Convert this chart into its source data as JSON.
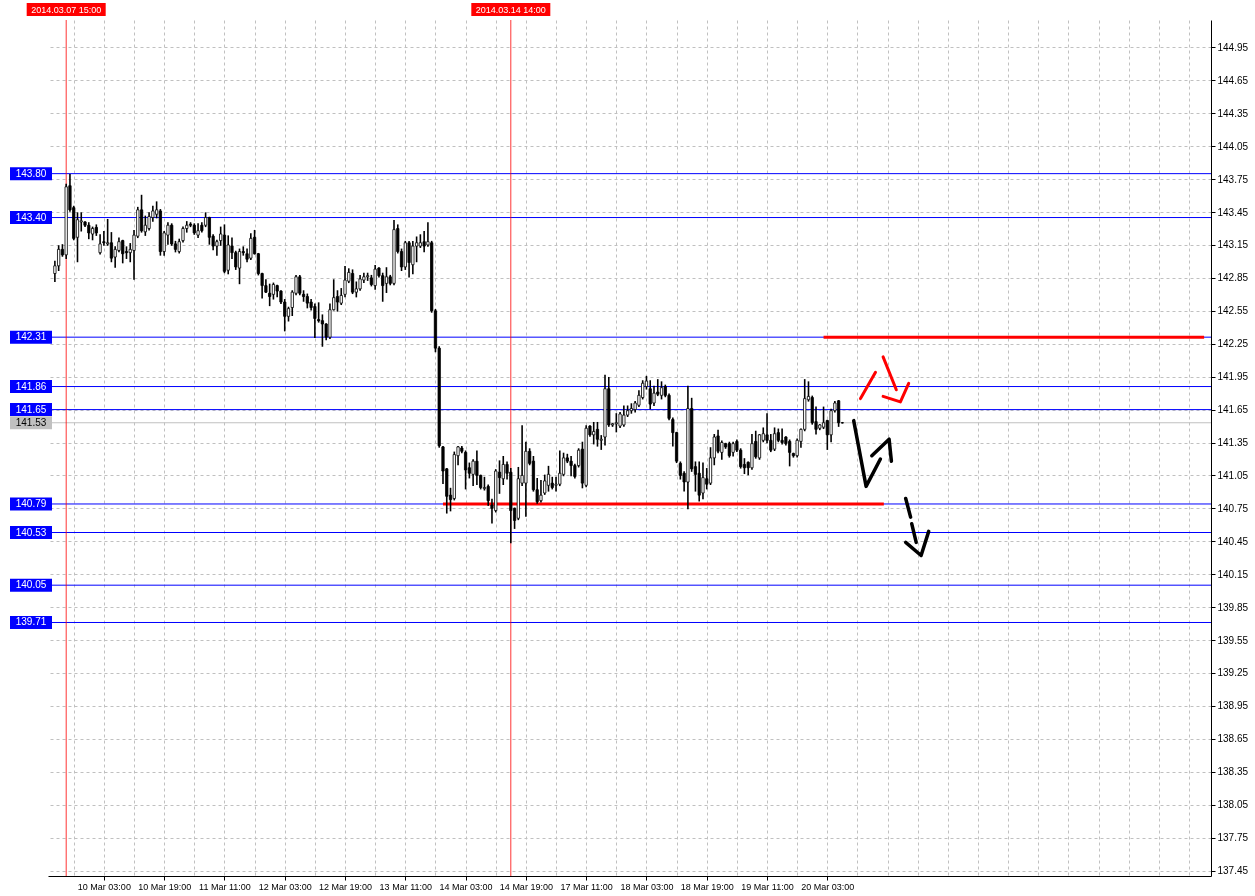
{
  "chart_data": {
    "type": "candlestick",
    "categories": [
      null,
      null,
      null,
      "2014.03.07 15:00",
      null,
      null,
      null,
      null,
      null,
      null,
      null,
      null,
      null,
      "10 Mar 03:00",
      null,
      null,
      null,
      null,
      null,
      null,
      null,
      null,
      null,
      null,
      null,
      null,
      null,
      null,
      null,
      "10 Mar 19:00",
      null,
      null,
      null,
      null,
      null,
      null,
      null,
      null,
      null,
      null,
      null,
      null,
      null,
      null,
      null,
      "11 Mar 11:00",
      null,
      null,
      null,
      null,
      null,
      null,
      null,
      null,
      null,
      null,
      null,
      null,
      null,
      null,
      null,
      "12 Mar 03:00",
      null,
      null,
      null,
      null,
      null,
      null,
      null,
      null,
      null,
      null,
      null,
      null,
      null,
      null,
      null,
      "12 Mar 19:00",
      null,
      null,
      null,
      null,
      null,
      null,
      null,
      null,
      null,
      null,
      null,
      null,
      null,
      null,
      null,
      "13 Mar 11:00",
      null,
      null,
      null,
      null,
      null,
      null,
      null,
      null,
      null,
      null,
      null,
      null,
      null,
      null,
      null,
      "14 Mar 03:00",
      null,
      null,
      null,
      null,
      null,
      null,
      null,
      null,
      null,
      null,
      null,
      "2014.03.14 14:00",
      null,
      null,
      null,
      "14 Mar 19:00",
      null,
      null,
      null,
      null,
      null,
      null,
      null,
      null,
      null,
      null,
      null,
      null,
      null,
      null,
      null,
      "17 Mar 11:00",
      null,
      null,
      null,
      null,
      null,
      null,
      null,
      null,
      null,
      null,
      null,
      null,
      null,
      null,
      null,
      "18 Mar 03:00",
      null,
      null,
      null,
      null,
      null,
      null,
      null,
      null,
      null,
      null,
      null,
      null,
      null,
      null,
      null,
      "18 Mar 19:00",
      null,
      null,
      null,
      null,
      null,
      null,
      null,
      null,
      null,
      null,
      null,
      null,
      null,
      null,
      null,
      "19 Mar 11:00",
      null,
      null,
      null,
      null,
      null,
      null,
      null,
      null,
      null,
      null,
      null,
      null,
      null,
      null,
      null,
      "20 Mar 03:00",
      null,
      null,
      null,
      null,
      null,
      null,
      null,
      null,
      null,
      null,
      null,
      null,
      null,
      null,
      null,
      null,
      null,
      null,
      null,
      null,
      null,
      null,
      null,
      null,
      null,
      null,
      null,
      null,
      null,
      null,
      null,
      null,
      null,
      null,
      null,
      null,
      null,
      null,
      null,
      null,
      null,
      null,
      null,
      null,
      null,
      null,
      null,
      null,
      null,
      null,
      null,
      null,
      null,
      null,
      null,
      null,
      null,
      null,
      null,
      null,
      null,
      null,
      null,
      null,
      null,
      null,
      null,
      null,
      null,
      null,
      null,
      null,
      null,
      null,
      null,
      null,
      null,
      null,
      null,
      null,
      null,
      null,
      null,
      null,
      null,
      null,
      null,
      null,
      null,
      null,
      null,
      null,
      null,
      null,
      null,
      null,
      null,
      null,
      null,
      null
    ],
    "ohlc": [
      [
        142.89,
        143.0,
        142.82,
        142.96
      ],
      [
        142.96,
        143.14,
        142.92,
        143.11
      ],
      [
        143.11,
        143.15,
        143.05,
        143.06
      ],
      [
        143.06,
        143.7,
        143.03,
        143.68
      ],
      [
        143.69,
        143.79,
        143.46,
        143.47
      ],
      [
        143.49,
        143.5,
        143.2,
        143.21
      ],
      [
        143.22,
        143.44,
        143.0,
        143.38
      ],
      [
        143.36,
        143.44,
        143.28,
        143.37
      ],
      [
        143.36,
        143.36,
        143.32,
        143.33
      ],
      [
        143.33,
        143.35,
        143.21,
        143.26
      ],
      [
        143.25,
        143.31,
        143.2,
        143.3
      ],
      [
        143.31,
        143.33,
        143.24,
        143.26
      ],
      [
        143.08,
        143.24,
        143.07,
        143.16
      ],
      [
        143.18,
        143.27,
        143.15,
        143.17
      ],
      [
        143.16,
        143.38,
        143.15,
        143.17
      ],
      [
        143.17,
        143.26,
        143.0,
        143.03
      ],
      [
        143.04,
        143.13,
        142.95,
        143.11
      ],
      [
        143.1,
        143.21,
        143.09,
        143.18
      ],
      [
        143.19,
        143.19,
        142.99,
        143.07
      ],
      [
        143.09,
        143.13,
        143.03,
        143.08
      ],
      [
        143.08,
        143.16,
        143.0,
        143.11
      ],
      [
        143.1,
        143.28,
        142.84,
        143.24
      ],
      [
        143.23,
        143.49,
        143.22,
        143.47
      ],
      [
        143.47,
        143.6,
        143.27,
        143.28
      ],
      [
        143.27,
        143.41,
        143.24,
        143.33
      ],
      [
        143.3,
        143.44,
        143.29,
        143.41
      ],
      [
        143.4,
        143.5,
        143.37,
        143.46
      ],
      [
        143.43,
        143.54,
        143.4,
        143.47
      ],
      [
        143.46,
        143.47,
        143.06,
        143.09
      ],
      [
        143.09,
        143.27,
        143.06,
        143.26
      ],
      [
        143.24,
        143.35,
        143.16,
        143.33
      ],
      [
        143.33,
        143.34,
        143.15,
        143.16
      ],
      [
        143.16,
        143.18,
        143.09,
        143.11
      ],
      [
        143.09,
        143.2,
        143.08,
        143.18
      ],
      [
        143.19,
        143.31,
        143.18,
        143.3
      ],
      [
        143.3,
        143.36,
        143.27,
        143.33
      ],
      [
        143.34,
        143.35,
        143.32,
        143.33
      ],
      [
        143.33,
        143.34,
        143.25,
        143.26
      ],
      [
        143.24,
        143.34,
        143.22,
        143.28
      ],
      [
        143.33,
        143.35,
        143.27,
        143.28
      ],
      [
        143.33,
        143.44,
        143.32,
        143.4
      ],
      [
        143.4,
        143.4,
        143.16,
        143.22
      ],
      [
        143.23,
        143.24,
        143.11,
        143.14
      ],
      [
        143.14,
        143.19,
        143.06,
        143.18
      ],
      [
        143.19,
        143.31,
        143.15,
        143.25
      ],
      [
        143.24,
        143.33,
        142.9,
        142.91
      ],
      [
        142.92,
        143.23,
        142.89,
        143.15
      ],
      [
        143.14,
        143.21,
        143.03,
        143.08
      ],
      [
        143.08,
        143.09,
        142.93,
        142.95
      ],
      [
        142.94,
        143.11,
        142.8,
        143.09
      ],
      [
        143.09,
        143.13,
        143.06,
        143.08
      ],
      [
        143.07,
        143.11,
        143.0,
        143.02
      ],
      [
        143.03,
        143.25,
        143.02,
        143.21
      ],
      [
        143.22,
        143.28,
        143.07,
        143.07
      ],
      [
        143.07,
        143.07,
        142.88,
        142.89
      ],
      [
        142.89,
        142.89,
        142.67,
        142.78
      ],
      [
        142.78,
        142.83,
        142.72,
        142.72
      ],
      [
        142.71,
        142.79,
        142.6,
        142.68
      ],
      [
        142.7,
        142.8,
        142.66,
        142.79
      ],
      [
        142.78,
        142.78,
        142.68,
        142.73
      ],
      [
        142.73,
        142.73,
        142.62,
        142.63
      ],
      [
        142.63,
        142.65,
        142.37,
        142.5
      ],
      [
        142.5,
        142.58,
        142.46,
        142.57
      ],
      [
        142.58,
        142.73,
        142.51,
        142.72
      ],
      [
        142.71,
        142.87,
        142.7,
        142.86
      ],
      [
        142.86,
        142.87,
        142.7,
        142.71
      ],
      [
        142.7,
        142.73,
        142.64,
        142.68
      ],
      [
        142.68,
        142.7,
        142.58,
        142.62
      ],
      [
        142.63,
        142.65,
        142.56,
        142.58
      ],
      [
        142.59,
        142.61,
        142.31,
        142.48
      ],
      [
        142.47,
        142.62,
        142.45,
        142.46
      ],
      [
        142.46,
        142.51,
        142.23,
        142.43
      ],
      [
        142.43,
        142.43,
        142.29,
        142.31
      ],
      [
        142.31,
        142.61,
        142.3,
        142.56
      ],
      [
        142.56,
        142.83,
        142.56,
        142.67
      ],
      [
        142.68,
        142.73,
        142.55,
        142.63
      ],
      [
        142.62,
        142.75,
        142.61,
        142.69
      ],
      [
        142.7,
        142.95,
        142.68,
        142.83
      ],
      [
        142.82,
        142.93,
        142.81,
        142.9
      ],
      [
        142.89,
        142.92,
        142.71,
        142.72
      ],
      [
        142.72,
        142.81,
        142.68,
        142.75
      ],
      [
        142.75,
        142.87,
        142.74,
        142.84
      ],
      [
        142.83,
        142.89,
        142.81,
        142.86
      ],
      [
        142.86,
        142.89,
        142.83,
        142.87
      ],
      [
        142.85,
        142.87,
        142.78,
        142.79
      ],
      [
        142.78,
        142.96,
        142.75,
        142.93
      ],
      [
        142.94,
        142.94,
        142.86,
        142.87
      ],
      [
        142.87,
        142.89,
        142.64,
        142.78
      ],
      [
        142.8,
        142.94,
        142.72,
        142.86
      ],
      [
        142.86,
        142.87,
        142.79,
        142.8
      ],
      [
        142.8,
        143.37,
        142.79,
        143.29
      ],
      [
        143.3,
        143.33,
        143.08,
        143.09
      ],
      [
        143.09,
        143.11,
        142.92,
        142.95
      ],
      [
        142.95,
        143.18,
        142.93,
        143.17
      ],
      [
        143.17,
        143.18,
        142.86,
        142.99
      ],
      [
        142.97,
        143.18,
        142.89,
        143.14
      ],
      [
        143.14,
        143.22,
        143.0,
        143.17
      ],
      [
        143.14,
        143.24,
        143.13,
        143.17
      ],
      [
        143.18,
        143.27,
        143.09,
        143.14
      ],
      [
        143.15,
        143.35,
        143.14,
        143.18
      ],
      [
        143.17,
        143.18,
        142.54,
        142.55
      ],
      [
        142.55,
        142.56,
        142.18,
        142.21
      ],
      [
        142.21,
        142.22,
        141.31,
        141.32
      ],
      [
        141.31,
        141.31,
        140.98,
        141.09
      ],
      [
        141.11,
        141.11,
        140.71,
        140.86
      ],
      [
        140.87,
        140.93,
        140.73,
        140.83
      ],
      [
        140.84,
        141.26,
        140.83,
        141.24
      ],
      [
        141.23,
        141.31,
        141.15,
        141.31
      ],
      [
        141.3,
        141.31,
        141.26,
        141.27
      ],
      [
        141.26,
        141.27,
        140.93,
        141.1
      ],
      [
        141.12,
        141.16,
        141.03,
        141.07
      ],
      [
        141.06,
        141.19,
        140.96,
        141.18
      ],
      [
        141.18,
        141.27,
        140.97,
        141.05
      ],
      [
        141.05,
        141.05,
        140.93,
        140.94
      ],
      [
        140.93,
        141.03,
        140.92,
        140.94
      ],
      [
        140.95,
        140.96,
        140.78,
        140.82
      ],
      [
        140.78,
        140.83,
        140.62,
        140.75
      ],
      [
        140.73,
        141.1,
        140.72,
        141.09
      ],
      [
        141.08,
        141.18,
        140.89,
        141.03
      ],
      [
        141.02,
        141.22,
        140.97,
        141.15
      ],
      [
        141.15,
        141.17,
        141.02,
        141.07
      ],
      [
        141.08,
        141.11,
        140.44,
        140.73
      ],
      [
        140.75,
        140.75,
        140.57,
        140.64
      ],
      [
        140.66,
        141.12,
        140.65,
        141.02
      ],
      [
        140.98,
        141.5,
        140.96,
        141.05
      ],
      [
        140.98,
        141.35,
        140.68,
        141.27
      ],
      [
        141.27,
        141.29,
        141.15,
        141.16
      ],
      [
        141.18,
        141.22,
        140.91,
        140.92
      ],
      [
        140.92,
        141.02,
        140.8,
        140.81
      ],
      [
        140.82,
        141.0,
        140.81,
        140.87
      ],
      [
        140.89,
        141.05,
        140.88,
        141.0
      ],
      [
        140.96,
        141.13,
        140.91,
        141.06
      ],
      [
        140.98,
        141.03,
        140.93,
        140.94
      ],
      [
        140.96,
        141.03,
        140.91,
        140.97
      ],
      [
        140.97,
        141.27,
        140.96,
        141.07
      ],
      [
        141.06,
        141.25,
        141.05,
        141.21
      ],
      [
        141.21,
        141.24,
        141.17,
        141.18
      ],
      [
        141.18,
        141.22,
        141.05,
        141.14
      ],
      [
        141.14,
        141.15,
        141.03,
        141.04
      ],
      [
        141.14,
        141.29,
        141.13,
        141.28
      ],
      [
        141.29,
        141.35,
        140.94,
        140.98
      ],
      [
        140.96,
        141.5,
        140.95,
        141.48
      ],
      [
        141.5,
        141.5,
        141.41,
        141.42
      ],
      [
        141.42,
        141.53,
        141.34,
        141.45
      ],
      [
        141.47,
        141.53,
        141.32,
        141.38
      ],
      [
        141.37,
        141.41,
        141.29,
        141.38
      ],
      [
        141.4,
        141.96,
        141.33,
        141.84
      ],
      [
        141.84,
        141.94,
        141.5,
        141.51
      ],
      [
        141.51,
        141.52,
        141.5,
        141.52
      ],
      [
        141.52,
        141.61,
        141.45,
        141.53
      ],
      [
        141.5,
        141.62,
        141.49,
        141.61
      ],
      [
        141.51,
        141.68,
        141.5,
        141.6
      ],
      [
        141.6,
        141.68,
        141.59,
        141.64
      ],
      [
        141.64,
        141.7,
        141.62,
        141.66
      ],
      [
        141.65,
        141.72,
        141.63,
        141.71
      ],
      [
        141.69,
        141.82,
        141.68,
        141.78
      ],
      [
        141.76,
        141.91,
        141.75,
        141.89
      ],
      [
        141.86,
        141.95,
        141.84,
        141.91
      ],
      [
        141.84,
        141.91,
        141.66,
        141.7
      ],
      [
        141.71,
        141.86,
        141.69,
        141.8
      ],
      [
        141.81,
        141.92,
        141.78,
        141.79
      ],
      [
        141.78,
        141.9,
        141.75,
        141.85
      ],
      [
        141.86,
        141.87,
        141.77,
        141.78
      ],
      [
        141.78,
        141.79,
        141.56,
        141.57
      ],
      [
        141.56,
        141.57,
        141.32,
        141.44
      ],
      [
        141.44,
        141.44,
        141.17,
        141.18
      ],
      [
        141.16,
        141.17,
        141.02,
        141.05
      ],
      [
        141.07,
        141.08,
        140.91,
        140.99
      ],
      [
        140.99,
        141.86,
        140.75,
        141.66
      ],
      [
        141.66,
        141.75,
        141.09,
        141.11
      ],
      [
        141.13,
        141.17,
        140.91,
        141.06
      ],
      [
        141.07,
        141.17,
        140.82,
        140.87
      ],
      [
        140.89,
        141.16,
        140.84,
        141.03
      ],
      [
        141.02,
        141.11,
        140.93,
        140.97
      ],
      [
        140.98,
        141.3,
        140.97,
        141.21
      ],
      [
        141.21,
        141.42,
        141.15,
        141.4
      ],
      [
        141.41,
        141.46,
        141.26,
        141.27
      ],
      [
        141.26,
        141.36,
        141.2,
        141.35
      ],
      [
        141.34,
        141.34,
        141.3,
        141.31
      ],
      [
        141.34,
        141.35,
        141.22,
        141.23
      ],
      [
        141.26,
        141.35,
        141.23,
        141.34
      ],
      [
        141.36,
        141.37,
        141.27,
        141.28
      ],
      [
        141.28,
        141.29,
        141.12,
        141.13
      ],
      [
        141.15,
        141.2,
        141.07,
        141.12
      ],
      [
        141.17,
        141.17,
        141.06,
        141.12
      ],
      [
        141.12,
        141.42,
        141.11,
        141.34
      ],
      [
        141.36,
        141.45,
        141.21,
        141.22
      ],
      [
        141.21,
        141.42,
        141.2,
        141.42
      ],
      [
        141.37,
        141.48,
        141.36,
        141.43
      ],
      [
        141.42,
        141.61,
        141.35,
        141.37
      ],
      [
        141.37,
        141.42,
        141.27,
        141.28
      ],
      [
        141.29,
        141.48,
        141.28,
        141.43
      ],
      [
        141.44,
        141.47,
        141.36,
        141.37
      ],
      [
        141.37,
        141.47,
        141.34,
        141.35
      ],
      [
        141.4,
        141.4,
        141.33,
        141.34
      ],
      [
        141.36,
        141.37,
        141.14,
        141.26
      ],
      [
        141.25,
        141.25,
        141.22,
        141.23
      ],
      [
        141.23,
        141.38,
        141.22,
        141.37
      ],
      [
        141.36,
        141.47,
        141.31,
        141.47
      ],
      [
        141.47,
        141.92,
        141.46,
        141.75
      ],
      [
        141.74,
        141.9,
        141.73,
        141.77
      ],
      [
        141.76,
        141.77,
        141.52,
        141.53
      ],
      [
        141.54,
        141.67,
        141.43,
        141.47
      ],
      [
        141.48,
        141.51,
        141.47,
        141.51
      ],
      [
        141.49,
        141.67,
        141.48,
        141.53
      ],
      [
        141.55,
        141.55,
        141.29,
        141.42
      ],
      [
        141.42,
        141.65,
        141.36,
        141.64
      ],
      [
        141.64,
        141.72,
        141.63,
        141.71
      ],
      [
        141.73,
        141.73,
        141.5,
        141.53
      ],
      [
        141.53,
        141.53,
        141.53,
        141.53
      ],
      null,
      null,
      null,
      null,
      null,
      null,
      null,
      null,
      null,
      null,
      null,
      null,
      null,
      null,
      null,
      null,
      null,
      null,
      null,
      null,
      null,
      null,
      null,
      null,
      null,
      null,
      null,
      null,
      null,
      null,
      null,
      null,
      null,
      null,
      null,
      null,
      null,
      null,
      null,
      null,
      null,
      null,
      null,
      null,
      null,
      null,
      null,
      null,
      null,
      null,
      null,
      null,
      null,
      null,
      null,
      null,
      null,
      null,
      null,
      null,
      null,
      null,
      null,
      null,
      null,
      null,
      null,
      null,
      null,
      null,
      null,
      null,
      null,
      null,
      null,
      null,
      null,
      null,
      null,
      null,
      null,
      null,
      null,
      null,
      null,
      null,
      null,
      null,
      null,
      null,
      null,
      null,
      null,
      null,
      null,
      null
    ],
    "series": [
      {
        "type": "line",
        "color": "#ff0000",
        "values": [
          null,
          null,
          null,
          null,
          null,
          null,
          null,
          null,
          null,
          null,
          null,
          null,
          null,
          null,
          null,
          null,
          null,
          null,
          null,
          null,
          null,
          null,
          null,
          null,
          null,
          null,
          null,
          null,
          null,
          null,
          null,
          null,
          null,
          null,
          null,
          null,
          null,
          null,
          null,
          null,
          null,
          null,
          null,
          null,
          null,
          null,
          null,
          null,
          null,
          null,
          null,
          null,
          null,
          null,
          null,
          null,
          null,
          null,
          null,
          null,
          null,
          null,
          null,
          null,
          null,
          null,
          null,
          null,
          null,
          null,
          null,
          null,
          null,
          null,
          null,
          null,
          null,
          null,
          null,
          null,
          null,
          null,
          null,
          null,
          null,
          null,
          null,
          null,
          null,
          null,
          null,
          null,
          null,
          null,
          null,
          null,
          null,
          null,
          null,
          null,
          null,
          null,
          null,
          140.79,
          140.79,
          140.79,
          140.79,
          140.79,
          140.79,
          140.79,
          140.79,
          140.79,
          140.79,
          140.79,
          140.79,
          140.79,
          140.79,
          140.79,
          140.79,
          140.79,
          140.79,
          140.79,
          140.79,
          140.79,
          140.79,
          140.79,
          140.79,
          140.79,
          140.79,
          140.79,
          140.79,
          140.79,
          140.79,
          140.79,
          140.79,
          140.79,
          140.79,
          140.79,
          140.79,
          140.79,
          140.79,
          140.79,
          140.79,
          140.79,
          140.79,
          140.79,
          140.79,
          140.79,
          140.79,
          140.79,
          140.79,
          140.79,
          140.79,
          140.79,
          140.79,
          140.79,
          140.79,
          140.79,
          140.79,
          140.79,
          140.79,
          140.79,
          140.79,
          140.79,
          140.79,
          140.79,
          140.79,
          140.79,
          140.79,
          140.79,
          140.79,
          140.79,
          140.79,
          140.79,
          140.79,
          140.79,
          140.79,
          140.79,
          140.79,
          140.79,
          140.79,
          140.79,
          140.79,
          140.79,
          140.79,
          140.79,
          140.79,
          140.79,
          140.79,
          140.79,
          140.79,
          140.79,
          140.79,
          140.79,
          140.79,
          140.79,
          140.79,
          140.79,
          140.79,
          140.79,
          140.79,
          140.79,
          140.79,
          140.79,
          140.79,
          140.79,
          140.79,
          140.79,
          140.79,
          140.79,
          140.79,
          140.79,
          140.79,
          140.79,
          140.79,
          140.79,
          140.79,
          140.79,
          140.79,
          140.79,
          140.79,
          null,
          null,
          null,
          null,
          null,
          null,
          null,
          null,
          null,
          null,
          null,
          null,
          null,
          null,
          null,
          null,
          null,
          null,
          null,
          null,
          null,
          null,
          null,
          null,
          null,
          null,
          null,
          null,
          null,
          null,
          null,
          null,
          null,
          null,
          null,
          null,
          null,
          null,
          null,
          null,
          null,
          null,
          null,
          null,
          null,
          null,
          null,
          null,
          null,
          null,
          null,
          null,
          null,
          null,
          null,
          null,
          null,
          null,
          null,
          null,
          null,
          null,
          null,
          null,
          null,
          null,
          null,
          null,
          null,
          null,
          null,
          null,
          null,
          null,
          null,
          null,
          null,
          null,
          null,
          null,
          null,
          null,
          null,
          null,
          null
        ]
      },
      {
        "type": "line",
        "color": "#ff0000",
        "values": [
          null,
          null,
          null,
          null,
          null,
          null,
          null,
          null,
          null,
          null,
          null,
          null,
          null,
          null,
          null,
          null,
          null,
          null,
          null,
          null,
          null,
          null,
          null,
          null,
          null,
          null,
          null,
          null,
          null,
          null,
          null,
          null,
          null,
          null,
          null,
          null,
          null,
          null,
          null,
          null,
          null,
          null,
          null,
          null,
          null,
          null,
          null,
          null,
          null,
          null,
          null,
          null,
          null,
          null,
          null,
          null,
          null,
          null,
          null,
          null,
          null,
          null,
          null,
          null,
          null,
          null,
          null,
          null,
          null,
          null,
          null,
          null,
          null,
          null,
          null,
          null,
          null,
          null,
          null,
          null,
          null,
          null,
          null,
          null,
          null,
          null,
          null,
          null,
          null,
          null,
          null,
          null,
          null,
          null,
          null,
          null,
          null,
          null,
          null,
          null,
          null,
          null,
          null,
          null,
          null,
          null,
          null,
          null,
          null,
          null,
          null,
          null,
          null,
          null,
          null,
          null,
          null,
          null,
          null,
          null,
          null,
          null,
          null,
          null,
          null,
          null,
          null,
          null,
          null,
          null,
          null,
          null,
          null,
          null,
          null,
          null,
          null,
          null,
          null,
          null,
          null,
          null,
          null,
          null,
          null,
          null,
          null,
          null,
          null,
          null,
          null,
          null,
          null,
          null,
          null,
          null,
          null,
          null,
          null,
          null,
          null,
          null,
          null,
          null,
          null,
          null,
          null,
          null,
          null,
          null,
          null,
          null,
          null,
          null,
          null,
          null,
          null,
          null,
          null,
          null,
          null,
          null,
          null,
          null,
          null,
          null,
          null,
          null,
          null,
          null,
          null,
          null,
          null,
          null,
          null,
          null,
          null,
          null,
          null,
          null,
          null,
          null,
          null,
          null,
          142.31,
          142.31,
          142.31,
          142.31,
          142.31,
          142.31,
          142.31,
          142.31,
          142.31,
          142.31,
          142.31,
          142.31,
          142.31,
          142.31,
          142.31,
          142.31,
          142.31,
          142.31,
          142.31,
          142.31,
          142.31,
          142.31,
          142.31,
          142.31,
          142.31,
          142.31,
          142.31,
          142.31,
          142.31,
          142.31,
          142.31,
          142.31,
          142.31,
          142.31,
          142.31,
          142.31,
          142.31,
          142.31,
          142.31,
          142.31,
          142.31,
          142.31,
          142.31,
          142.31,
          142.31,
          142.31,
          142.31,
          142.31,
          142.31,
          142.31,
          142.31,
          142.31,
          142.31,
          142.31,
          142.31,
          142.31,
          142.31,
          142.31,
          142.31,
          142.31,
          142.31,
          142.31,
          142.31,
          142.31,
          142.31,
          142.31,
          142.31,
          142.31,
          142.31,
          142.31,
          142.31,
          142.31,
          142.31,
          142.31,
          142.31,
          142.31,
          142.31,
          142.31,
          142.31,
          142.31,
          142.31,
          142.31,
          142.31,
          142.31,
          142.31,
          142.31,
          142.31,
          142.31,
          142.31,
          142.31,
          142.31,
          142.31,
          142.31,
          142.31,
          142.31,
          142.31,
          142.31,
          142.31,
          142.31,
          142.31,
          142.31,
          142.31
        ]
      }
    ],
    "ylim": [
      137.4,
      145.2
    ],
    "yticks": [
      144.95,
      144.65,
      144.35,
      144.05,
      143.75,
      143.45,
      143.15,
      142.85,
      142.55,
      142.25,
      141.95,
      141.65,
      141.35,
      141.05,
      140.75,
      140.45,
      140.15,
      139.85,
      139.55,
      139.25,
      138.95,
      138.65,
      138.35,
      138.05,
      137.75,
      137.45
    ],
    "grid": true,
    "ref_lines": [
      {
        "axis": "y",
        "value": 143.8,
        "label": "143.80",
        "color": "#0000ff"
      },
      {
        "axis": "y",
        "value": 143.4,
        "label": "143.40",
        "color": "#0000ff"
      },
      {
        "axis": "y",
        "value": 142.31,
        "label": "142.31",
        "color": "#0000ff"
      },
      {
        "axis": "y",
        "value": 141.86,
        "label": "141.86",
        "color": "#0000ff"
      },
      {
        "axis": "y",
        "value": 141.65,
        "label": "141.65",
        "color": "#0000ff"
      },
      {
        "axis": "y",
        "value": 141.53,
        "label": "141.53",
        "color": "#c0c0c0"
      },
      {
        "axis": "y",
        "value": 140.79,
        "label": "140.79",
        "color": "#0000ff"
      },
      {
        "axis": "y",
        "value": 140.53,
        "label": "140.53",
        "color": "#0000ff"
      },
      {
        "axis": "y",
        "value": 140.05,
        "label": "140.05",
        "color": "#0000ff"
      },
      {
        "axis": "y",
        "value": 139.71,
        "label": "139.71",
        "color": "#0000ff"
      },
      {
        "axis": "x",
        "value": "2014.03.07 15:00",
        "color": "#ff0000"
      },
      {
        "axis": "x",
        "value": "2014.03.14 14:00",
        "color": "#ff0000"
      }
    ]
  }
}
